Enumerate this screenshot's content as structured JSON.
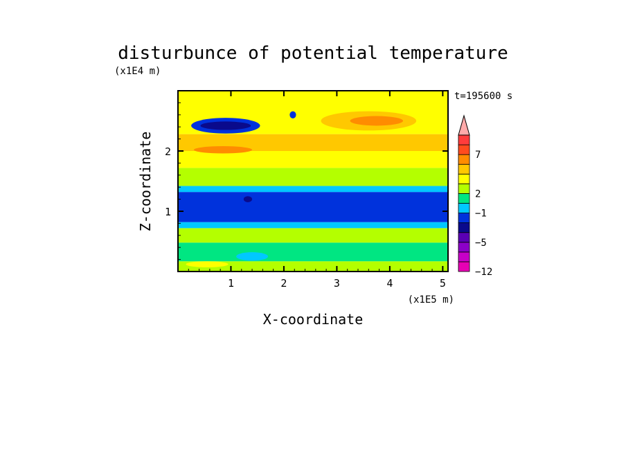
{
  "chart_data": {
    "type": "heatmap",
    "title": "disturbunce of potential temperature",
    "time_label": "t=195600 s",
    "xlabel": "X-coordinate",
    "ylabel": "Z-coordinate",
    "x_unit": "(x1E5 m)",
    "y_unit": "(x1E4 m)",
    "xlim": [
      0,
      5.1
    ],
    "ylim": [
      0,
      3.0
    ],
    "x_ticks": [
      1,
      2,
      3,
      4,
      5
    ],
    "x_tick_labels": [
      "1",
      "2",
      "3",
      "4",
      "5"
    ],
    "y_ticks": [
      1,
      2
    ],
    "y_tick_labels": [
      "1",
      "2"
    ],
    "colorbar": {
      "tick_labels": [
        "−12",
        "−5",
        "−1",
        "2",
        "7"
      ],
      "tick_levels": [
        0,
        3,
        6,
        8,
        12
      ],
      "n_levels": 14,
      "extend_max": true,
      "colors": [
        "#e600b4",
        "#c800c8",
        "#8c00c8",
        "#5a00b4",
        "#0a0a8c",
        "#0032dc",
        "#00c8ff",
        "#00e682",
        "#b4ff00",
        "#ffff00",
        "#ffc800",
        "#ff8c00",
        "#ff4b1e",
        "#ff3c3c",
        "#ffaaaa",
        "#ffd2d2"
      ]
    },
    "bands": [
      {
        "z": [
          0.0,
          0.17
        ],
        "value": "0 to 1",
        "color": "#b4ff00"
      },
      {
        "z": [
          0.17,
          0.48
        ],
        "value": "-1 to 0",
        "color": "#00e682"
      },
      {
        "z": [
          0.48,
          0.72
        ],
        "value": "0 to 1",
        "color": "#b4ff00"
      },
      {
        "z": [
          0.72,
          0.82
        ],
        "value": "-2 to -1",
        "color": "#00c8ff"
      },
      {
        "z": [
          0.82,
          1.32
        ],
        "value": "-4 to -3",
        "color": "#0032dc"
      },
      {
        "z": [
          1.32,
          1.42
        ],
        "value": "-2 to -1",
        "color": "#00c8ff"
      },
      {
        "z": [
          1.42,
          1.72
        ],
        "value": "0 to 1",
        "color": "#b4ff00"
      },
      {
        "z": [
          1.72,
          2.0
        ],
        "value": "1 to 2",
        "color": "#ffff00"
      },
      {
        "z": [
          2.0,
          2.28
        ],
        "value": "2 to 4",
        "color": "#ffc800"
      },
      {
        "z": [
          2.28,
          3.0
        ],
        "value": "0 to 1",
        "color": "#ffff00"
      }
    ],
    "features": [
      {
        "name": "cold-core",
        "x": 0.9,
        "z": 2.42,
        "w": 0.95,
        "h": 0.14,
        "color": "#0a0a8c"
      },
      {
        "name": "cold-ring",
        "x": 0.9,
        "z": 2.42,
        "w": 1.3,
        "h": 0.26,
        "color": "#0032dc"
      },
      {
        "name": "warm-max",
        "x": 3.75,
        "z": 2.5,
        "w": 1.0,
        "h": 0.16,
        "color": "#ff8c00"
      },
      {
        "name": "warm-ring",
        "x": 3.6,
        "z": 2.5,
        "w": 1.8,
        "h": 0.32,
        "color": "#ffc800"
      },
      {
        "name": "warm-left",
        "x": 0.85,
        "z": 2.02,
        "w": 1.1,
        "h": 0.12,
        "color": "#ff8c00"
      },
      {
        "name": "cold-spot",
        "x": 2.17,
        "z": 2.6,
        "w": 0.12,
        "h": 0.12,
        "color": "#0032dc"
      },
      {
        "name": "mountain-core",
        "x": 1.32,
        "z": 1.2,
        "w": 0.16,
        "h": 0.1,
        "color": "#0a0a8c"
      },
      {
        "name": "low-cyan",
        "x": 1.4,
        "z": 0.25,
        "w": 0.6,
        "h": 0.14,
        "color": "#00c8ff"
      },
      {
        "name": "low-yellow",
        "x": 0.55,
        "z": 0.12,
        "w": 0.8,
        "h": 0.1,
        "color": "#ffff00"
      }
    ]
  }
}
